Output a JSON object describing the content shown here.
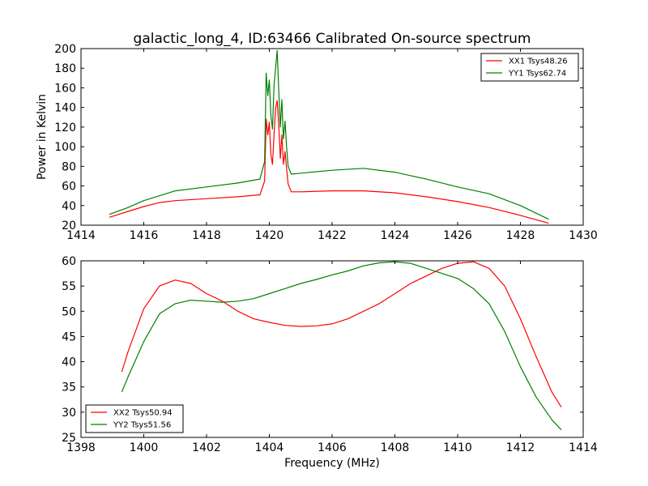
{
  "chart_data": [
    {
      "type": "line",
      "title": "galactic_long_4, ID:63466 Calibrated On-source spectrum",
      "xlabel": "",
      "ylabel": "Power in Kelvin",
      "xlim": [
        1414,
        1430
      ],
      "ylim": [
        20,
        200
      ],
      "xticks": [
        1414,
        1416,
        1418,
        1420,
        1422,
        1424,
        1426,
        1428,
        1430
      ],
      "yticks": [
        20,
        40,
        60,
        80,
        100,
        120,
        140,
        160,
        180,
        200
      ],
      "grid": false,
      "legend_position": "top-right",
      "series": [
        {
          "name": "XX1 Tsys48.26",
          "color": "#ff0000",
          "x": [
            1414.9,
            1415.5,
            1416.0,
            1416.5,
            1417.0,
            1418.0,
            1419.0,
            1419.7,
            1419.85,
            1419.9,
            1419.95,
            1420.0,
            1420.05,
            1420.1,
            1420.15,
            1420.2,
            1420.25,
            1420.3,
            1420.35,
            1420.4,
            1420.45,
            1420.5,
            1420.55,
            1420.6,
            1420.7,
            1421.0,
            1422.0,
            1423.0,
            1424.0,
            1425.0,
            1426.0,
            1427.0,
            1428.0,
            1428.9
          ],
          "y": [
            28,
            34,
            39,
            43,
            45,
            47,
            49,
            51,
            65,
            128,
            112,
            125,
            92,
            82,
            112,
            140,
            147,
            122,
            88,
            112,
            82,
            95,
            78,
            62,
            54,
            54,
            55,
            55,
            53,
            49,
            44,
            38,
            30,
            22
          ]
        },
        {
          "name": "YY1 Tsys62.74",
          "color": "#008000",
          "x": [
            1414.9,
            1415.5,
            1416.0,
            1416.5,
            1417.0,
            1418.0,
            1419.0,
            1419.7,
            1419.85,
            1419.9,
            1419.95,
            1420.0,
            1420.05,
            1420.1,
            1420.15,
            1420.2,
            1420.25,
            1420.3,
            1420.35,
            1420.4,
            1420.45,
            1420.5,
            1420.55,
            1420.6,
            1420.7,
            1421.0,
            1422.0,
            1423.0,
            1424.0,
            1425.0,
            1426.0,
            1427.0,
            1428.0,
            1428.9
          ],
          "y": [
            31,
            38,
            45,
            50,
            55,
            59,
            63,
            67,
            85,
            175,
            152,
            168,
            132,
            118,
            162,
            181,
            198,
            158,
            120,
            148,
            108,
            126,
            100,
            80,
            72,
            73,
            76,
            78,
            74,
            67,
            59,
            52,
            40,
            26
          ]
        }
      ]
    },
    {
      "type": "line",
      "title": "",
      "xlabel": "Frequency (MHz)",
      "ylabel": "",
      "xlim": [
        1398,
        1414
      ],
      "ylim": [
        25,
        60
      ],
      "xticks": [
        1398,
        1400,
        1402,
        1404,
        1406,
        1408,
        1410,
        1412,
        1414
      ],
      "yticks": [
        25,
        30,
        35,
        40,
        45,
        50,
        55,
        60
      ],
      "grid": false,
      "legend_position": "bottom-left",
      "series": [
        {
          "name": "XX2 Tsys50.94",
          "color": "#ff0000",
          "x": [
            1399.3,
            1399.5,
            1400.0,
            1400.5,
            1401.0,
            1401.5,
            1402.0,
            1402.5,
            1403.0,
            1403.5,
            1404.0,
            1404.5,
            1405.0,
            1405.5,
            1406.0,
            1406.5,
            1407.0,
            1407.5,
            1408.0,
            1408.5,
            1409.0,
            1409.5,
            1410.0,
            1410.5,
            1411.0,
            1411.5,
            1412.0,
            1412.5,
            1413.0,
            1413.3
          ],
          "y": [
            38,
            42,
            50.5,
            55,
            56.2,
            55.5,
            53.5,
            52,
            50,
            48.5,
            47.8,
            47.2,
            47,
            47.1,
            47.5,
            48.5,
            50,
            51.5,
            53.5,
            55.5,
            57,
            58.5,
            59.5,
            59.8,
            58.5,
            55,
            48.5,
            41,
            34,
            31
          ]
        },
        {
          "name": "YY2 Tsys51.56",
          "color": "#008000",
          "x": [
            1399.3,
            1399.5,
            1400.0,
            1400.5,
            1401.0,
            1401.5,
            1402.0,
            1402.5,
            1403.0,
            1403.5,
            1404.0,
            1404.5,
            1405.0,
            1405.5,
            1406.0,
            1406.5,
            1407.0,
            1407.5,
            1408.0,
            1408.5,
            1409.0,
            1409.5,
            1410.0,
            1410.5,
            1411.0,
            1411.5,
            1412.0,
            1412.5,
            1413.0,
            1413.3
          ],
          "y": [
            34,
            37,
            44,
            49.5,
            51.5,
            52.2,
            52,
            51.8,
            52,
            52.5,
            53.5,
            54.5,
            55.5,
            56.3,
            57.2,
            58,
            59,
            59.6,
            59.8,
            59.5,
            58.5,
            57.5,
            56.5,
            54.5,
            51.5,
            46,
            39,
            33,
            28.5,
            26.5
          ]
        }
      ]
    }
  ]
}
